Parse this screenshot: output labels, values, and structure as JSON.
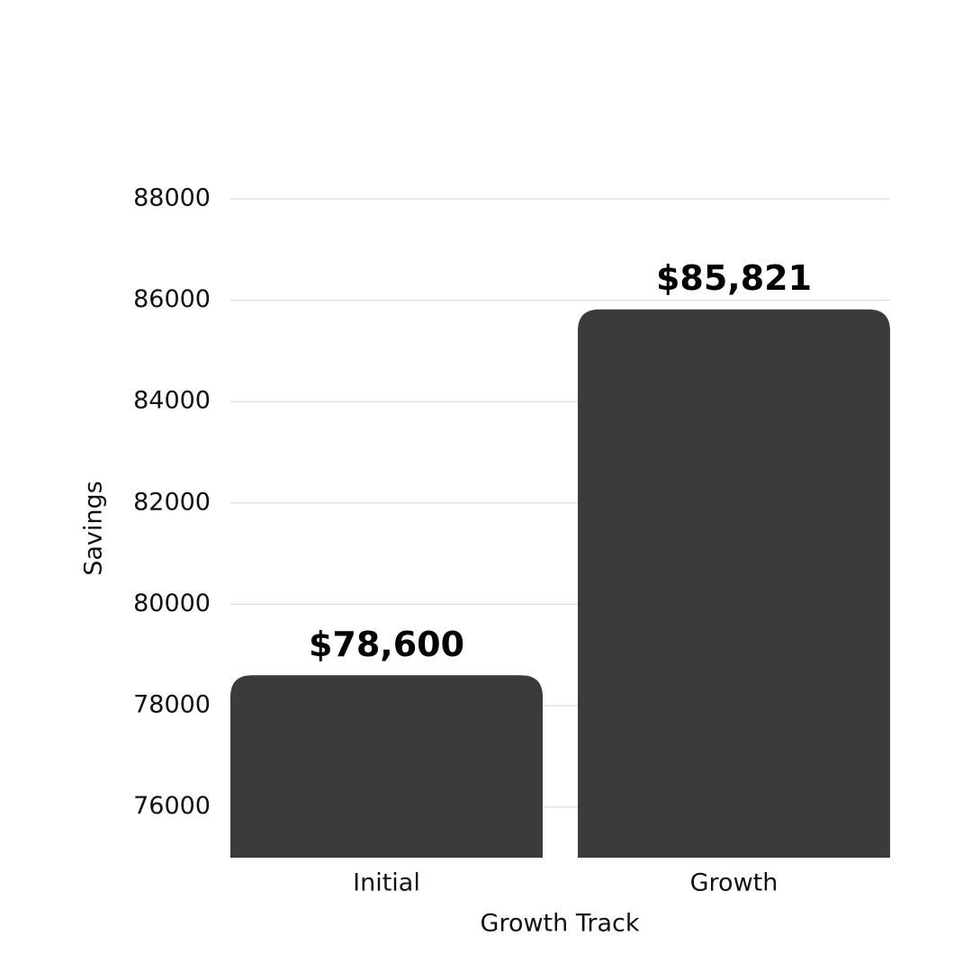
{
  "chart_data": {
    "type": "bar",
    "xlabel": "Growth Track",
    "ylabel": "Savings",
    "categories": [
      "Initial",
      "Growth"
    ],
    "values": [
      78600,
      85821
    ],
    "value_labels": [
      "$78,600",
      "$85,821"
    ],
    "color": "#3b3b3d",
    "ylim": [
      75000,
      88000
    ],
    "yticks": [
      76000,
      78000,
      80000,
      82000,
      84000,
      86000,
      88000
    ],
    "grid": true
  }
}
